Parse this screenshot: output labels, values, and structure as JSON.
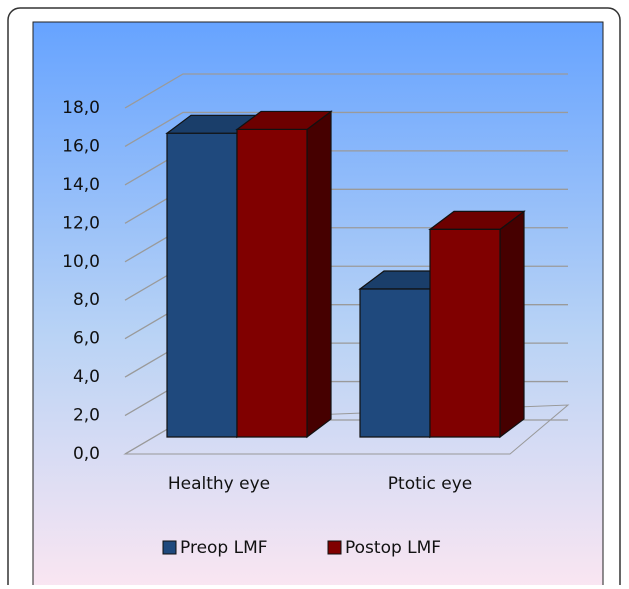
{
  "chart_data": {
    "type": "bar3d",
    "categories": [
      "Healthy eye",
      "Ptotic eye"
    ],
    "series": [
      {
        "name": "Preop LMF",
        "color": "#1f497d",
        "values": [
          15.8,
          7.7
        ]
      },
      {
        "name": "Postop LMF",
        "color": "#800000",
        "values": [
          16.0,
          10.8
        ]
      }
    ],
    "ylim": [
      0,
      18
    ],
    "yticks": [
      {
        "value": 0,
        "label": "0,0"
      },
      {
        "value": 2,
        "label": "2,0"
      },
      {
        "value": 4,
        "label": "4,0"
      },
      {
        "value": 6,
        "label": "6,0"
      },
      {
        "value": 8,
        "label": "8,0"
      },
      {
        "value": 10,
        "label": "10,0"
      },
      {
        "value": 12,
        "label": "12,0"
      },
      {
        "value": 14,
        "label": "14,0"
      },
      {
        "value": 16,
        "label": "16,0"
      },
      {
        "value": 18,
        "label": "18,0"
      }
    ],
    "grid": true,
    "legend": "bottom"
  }
}
